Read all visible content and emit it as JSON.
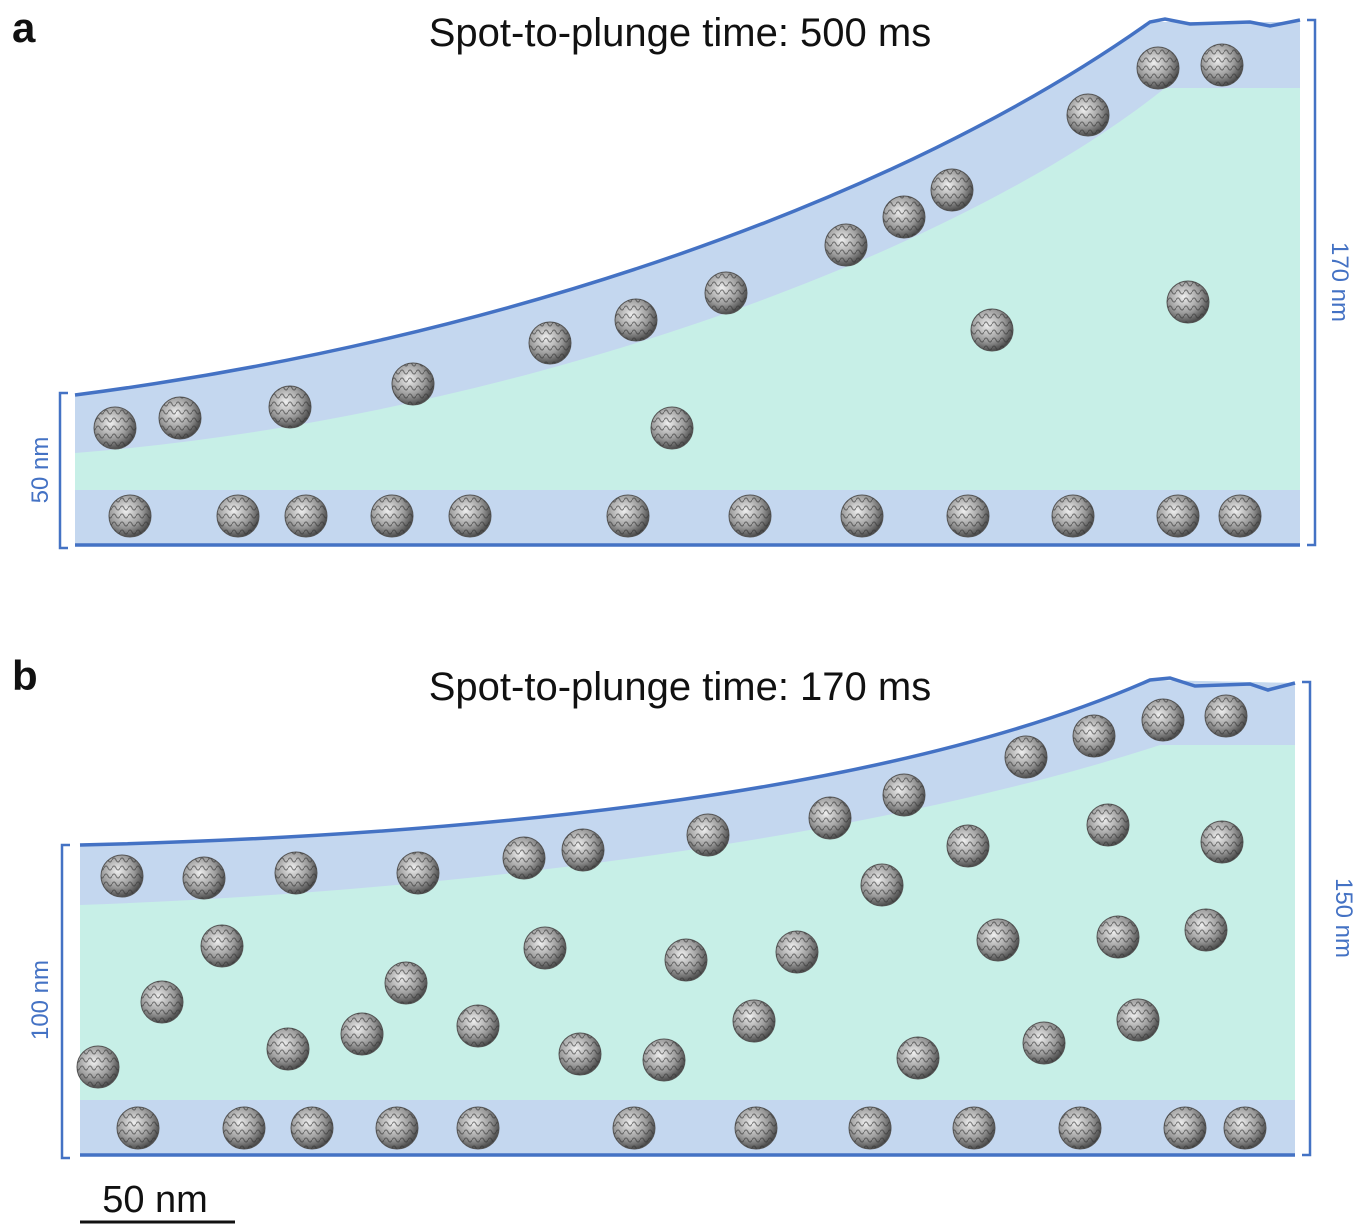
{
  "panels": [
    {
      "label": "a",
      "title": "Spot-to-plunge time: 500 ms",
      "left_dimension": "50 nm",
      "right_dimension": "170 nm"
    },
    {
      "label": "b",
      "title": "Spot-to-plunge time: 170 ms",
      "left_dimension": "100 nm",
      "right_dimension": "150 nm"
    }
  ],
  "scale_bar": "50 nm"
}
